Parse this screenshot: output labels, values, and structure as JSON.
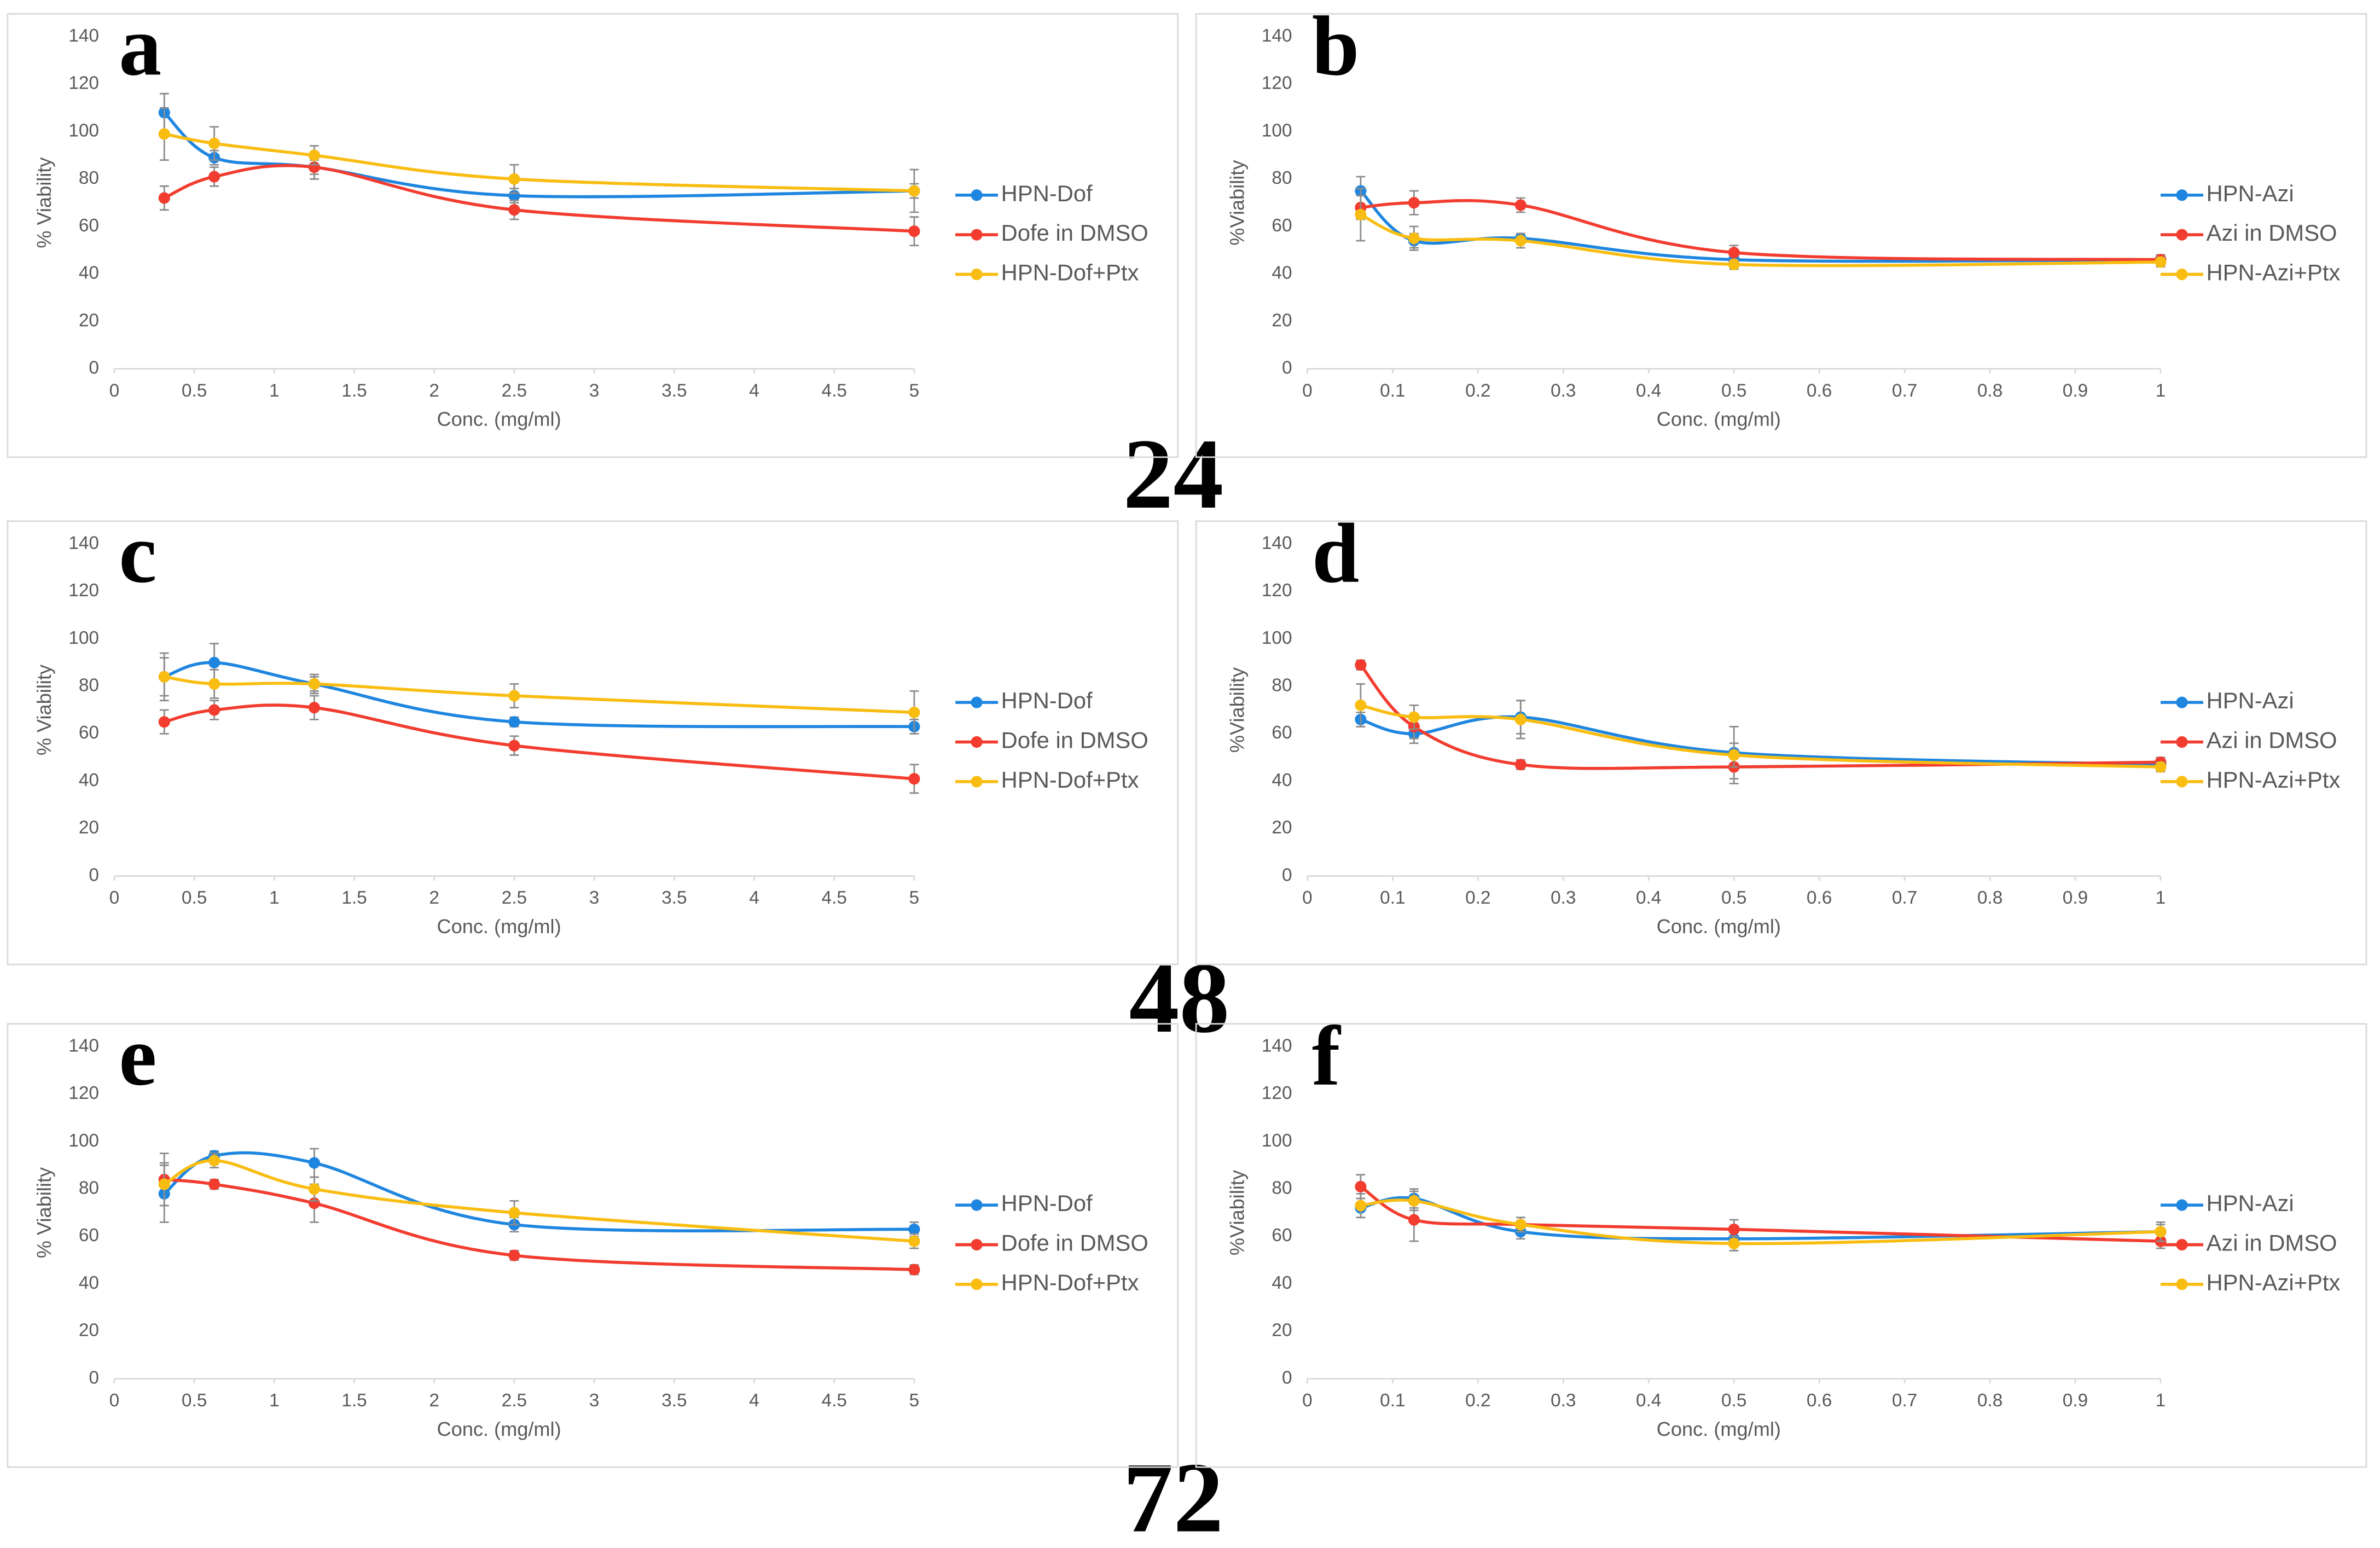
{
  "hour_labels": [
    "24",
    "48",
    "72"
  ],
  "chart_data": [
    {
      "type": "line",
      "panel_label": "a",
      "xlabel": "Conc. (mg/ml)",
      "ylabel": "% Viability",
      "x": [
        0.3125,
        0.625,
        1.25,
        2.5,
        5
      ],
      "xlim": [
        0,
        5
      ],
      "xticks": [
        0,
        0.5,
        1,
        1.5,
        2,
        2.5,
        3,
        3.5,
        4,
        4.5,
        5
      ],
      "ylim": [
        0,
        140
      ],
      "yticks": [
        0,
        20,
        40,
        60,
        80,
        100,
        120,
        140
      ],
      "series": [
        {
          "name": "HPN-Dof",
          "color": "#1f86e0",
          "values": [
            108,
            89,
            85,
            73,
            75
          ],
          "errors": [
            8,
            3,
            3,
            3,
            3
          ]
        },
        {
          "name": "Dofe in DMSO",
          "color": "#f23c2f",
          "values": [
            72,
            81,
            85,
            67,
            58
          ],
          "errors": [
            5,
            4,
            5,
            4,
            6
          ]
        },
        {
          "name": "HPN-Dof+Ptx",
          "color": "#f9bd12",
          "values": [
            99,
            95,
            90,
            80,
            75
          ],
          "errors": [
            11,
            7,
            4,
            6,
            9
          ]
        }
      ]
    },
    {
      "type": "line",
      "panel_label": "b",
      "xlabel": "Conc. (mg/ml)",
      "ylabel": "%Viability",
      "x": [
        0.0625,
        0.125,
        0.25,
        0.5,
        1
      ],
      "xlim": [
        0,
        1
      ],
      "xticks": [
        0,
        0.1,
        0.2,
        0.3,
        0.4,
        0.5,
        0.6,
        0.7,
        0.8,
        0.9,
        1
      ],
      "ylim": [
        0,
        140
      ],
      "yticks": [
        0,
        20,
        40,
        60,
        80,
        100,
        120,
        140
      ],
      "series": [
        {
          "name": "HPN-Azi",
          "color": "#1f86e0",
          "values": [
            75,
            54,
            55,
            46,
            46
          ],
          "errors": [
            6,
            3,
            2,
            2,
            2
          ]
        },
        {
          "name": "Azi in DMSO",
          "color": "#f23c2f",
          "values": [
            68,
            70,
            69,
            49,
            46
          ],
          "errors": [
            5,
            5,
            3,
            3,
            2
          ]
        },
        {
          "name": "HPN-Azi+Ptx",
          "color": "#f9bd12",
          "values": [
            65,
            55,
            54,
            44,
            45
          ],
          "errors": [
            11,
            5,
            3,
            2,
            2
          ]
        }
      ]
    },
    {
      "type": "line",
      "panel_label": "c",
      "xlabel": "Conc. (mg/ml)",
      "ylabel": "% Viability",
      "x": [
        0.3125,
        0.625,
        1.25,
        2.5,
        5
      ],
      "xlim": [
        0,
        5
      ],
      "xticks": [
        0,
        0.5,
        1,
        1.5,
        2,
        2.5,
        3,
        3.5,
        4,
        4.5,
        5
      ],
      "ylim": [
        0,
        140
      ],
      "yticks": [
        0,
        20,
        40,
        60,
        80,
        100,
        120,
        140
      ],
      "series": [
        {
          "name": "HPN-Dof",
          "color": "#1f86e0",
          "values": [
            84,
            90,
            81,
            65,
            63
          ],
          "errors": [
            10,
            8,
            4,
            2,
            3
          ]
        },
        {
          "name": "Dofe in DMSO",
          "color": "#f23c2f",
          "values": [
            65,
            70,
            71,
            55,
            41
          ],
          "errors": [
            5,
            4,
            5,
            4,
            6
          ]
        },
        {
          "name": "HPN-Dof+Ptx",
          "color": "#f9bd12",
          "values": [
            84,
            81,
            81,
            76,
            69
          ],
          "errors": [
            8,
            6,
            3,
            5,
            9
          ]
        }
      ]
    },
    {
      "type": "line",
      "panel_label": "d",
      "xlabel": "Conc. (mg/ml)",
      "ylabel": "%Viability",
      "x": [
        0.0625,
        0.125,
        0.25,
        0.5,
        1
      ],
      "xlim": [
        0,
        1
      ],
      "xticks": [
        0,
        0.1,
        0.2,
        0.3,
        0.4,
        0.5,
        0.6,
        0.7,
        0.8,
        0.9,
        1
      ],
      "ylim": [
        0,
        140
      ],
      "yticks": [
        0,
        20,
        40,
        60,
        80,
        100,
        120,
        140
      ],
      "series": [
        {
          "name": "HPN-Azi",
          "color": "#1f86e0",
          "values": [
            66,
            60,
            67,
            52,
            47
          ],
          "errors": [
            3,
            4,
            7,
            11,
            2
          ]
        },
        {
          "name": "Azi in DMSO",
          "color": "#f23c2f",
          "values": [
            89,
            63,
            47,
            46,
            48
          ],
          "errors": [
            2,
            5,
            2,
            7,
            2
          ]
        },
        {
          "name": "HPN-Azi+Ptx",
          "color": "#f9bd12",
          "values": [
            72,
            67,
            66,
            51,
            46
          ],
          "errors": [
            9,
            5,
            8,
            5,
            2
          ]
        }
      ]
    },
    {
      "type": "line",
      "panel_label": "e",
      "xlabel": "Conc. (mg/ml)",
      "ylabel": "% Viability",
      "x": [
        0.3125,
        0.625,
        1.25,
        2.5,
        5
      ],
      "xlim": [
        0,
        5
      ],
      "xticks": [
        0,
        0.5,
        1,
        1.5,
        2,
        2.5,
        3,
        3.5,
        4,
        4.5,
        5
      ],
      "ylim": [
        0,
        140
      ],
      "yticks": [
        0,
        20,
        40,
        60,
        80,
        100,
        120,
        140
      ],
      "series": [
        {
          "name": "HPN-Dof",
          "color": "#1f86e0",
          "values": [
            78,
            94,
            91,
            65,
            63
          ],
          "errors": [
            12,
            2,
            6,
            3,
            3
          ]
        },
        {
          "name": "Dofe in DMSO",
          "color": "#f23c2f",
          "values": [
            84,
            82,
            74,
            52,
            46
          ],
          "errors": [
            11,
            2,
            8,
            2,
            2
          ]
        },
        {
          "name": "HPN-Dof+Ptx",
          "color": "#f9bd12",
          "values": [
            82,
            92,
            80,
            70,
            58
          ],
          "errors": [
            9,
            3,
            5,
            5,
            3
          ]
        }
      ]
    },
    {
      "type": "line",
      "panel_label": "f",
      "xlabel": "Conc. (mg/ml)",
      "ylabel": "%Viability",
      "x": [
        0.0625,
        0.125,
        0.25,
        0.5,
        1
      ],
      "xlim": [
        0,
        1
      ],
      "xticks": [
        0,
        0.1,
        0.2,
        0.3,
        0.4,
        0.5,
        0.6,
        0.7,
        0.8,
        0.9,
        1
      ],
      "ylim": [
        0,
        140
      ],
      "yticks": [
        0,
        20,
        40,
        60,
        80,
        100,
        120,
        140
      ],
      "series": [
        {
          "name": "HPN-Azi",
          "color": "#1f86e0",
          "values": [
            72,
            76,
            62,
            59,
            62
          ],
          "errors": [
            4,
            4,
            3,
            3,
            3
          ]
        },
        {
          "name": "Azi in DMSO",
          "color": "#f23c2f",
          "values": [
            81,
            67,
            65,
            63,
            58
          ],
          "errors": [
            5,
            9,
            3,
            4,
            3
          ]
        },
        {
          "name": "HPN-Azi+Ptx",
          "color": "#f9bd12",
          "values": [
            73,
            75,
            65,
            57,
            62
          ],
          "errors": [
            5,
            4,
            3,
            3,
            4
          ]
        }
      ]
    }
  ]
}
